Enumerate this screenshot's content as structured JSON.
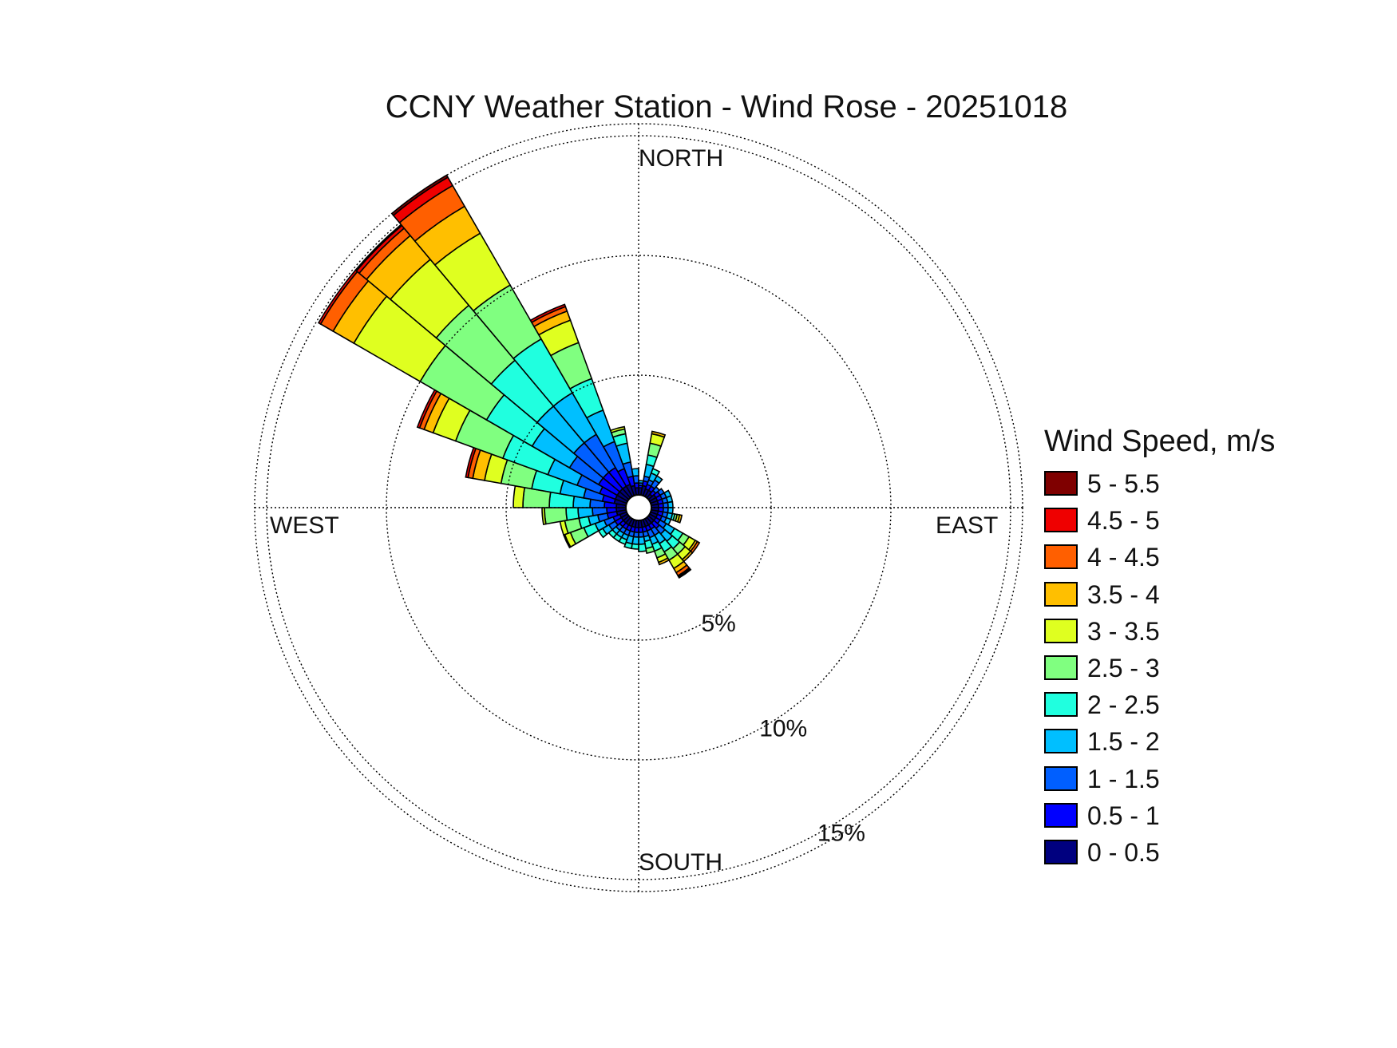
{
  "title": "CCNY Weather Station - Wind Rose - 20251018",
  "directions": {
    "north": "NORTH",
    "south": "SOUTH",
    "east": "EAST",
    "west": "WEST"
  },
  "chart_data": {
    "type": "windrose",
    "title": "CCNY Weather Station - Wind Rose - 20251018",
    "legend_title": "Wind Speed, m/s",
    "legend_placement": "right",
    "rings": [
      {
        "value": 5,
        "label": "5%"
      },
      {
        "value": 10,
        "label": "10%"
      },
      {
        "value": 15,
        "label": "15%"
      }
    ],
    "ring_max": 15.5,
    "bins": [
      {
        "label": "0 - 0.5",
        "color": "#00007f"
      },
      {
        "label": "0.5 - 1",
        "color": "#0000ff"
      },
      {
        "label": "1 - 1.5",
        "color": "#005fff"
      },
      {
        "label": "1.5 - 2",
        "color": "#00bfff"
      },
      {
        "label": "2 - 2.5",
        "color": "#20ffdf"
      },
      {
        "label": "2.5 - 3",
        "color": "#80ff80"
      },
      {
        "label": "3 - 3.5",
        "color": "#dfff20"
      },
      {
        "label": "3.5 - 4",
        "color": "#ffbf00"
      },
      {
        "label": "4 - 4.5",
        "color": "#ff5f00"
      },
      {
        "label": "4.5 - 5",
        "color": "#ef0000"
      },
      {
        "label": "5 - 5.5",
        "color": "#7f0000"
      }
    ],
    "sector_width_deg": 10,
    "sectors": [
      {
        "direction": 5,
        "cumulative": [
          0.3,
          0.4,
          0.5,
          0.6
        ]
      },
      {
        "direction": 15,
        "cumulative": [
          0.4,
          0.6,
          0.8,
          1.3,
          1.7,
          2.2,
          2.6,
          2.7
        ]
      },
      {
        "direction": 25,
        "cumulative": [
          0.3,
          0.5,
          0.7,
          1.0,
          1.2
        ]
      },
      {
        "direction": 35,
        "cumulative": [
          0.3,
          0.5,
          0.8,
          1.0
        ]
      },
      {
        "direction": 45,
        "cumulative": [
          0.2,
          0.4,
          0.6
        ]
      },
      {
        "direction": 55,
        "cumulative": [
          0.3,
          0.5,
          0.7
        ]
      },
      {
        "direction": 65,
        "cumulative": [
          0.3,
          0.5,
          0.7,
          0.9
        ]
      },
      {
        "direction": 75,
        "cumulative": [
          0.3,
          0.5,
          0.7,
          0.9
        ]
      },
      {
        "direction": 85,
        "cumulative": [
          0.3,
          0.5,
          0.7,
          0.9
        ]
      },
      {
        "direction": 95,
        "cumulative": [
          0.3,
          0.5,
          0.7,
          0.9
        ]
      },
      {
        "direction": 105,
        "cumulative": [
          0.3,
          0.5,
          0.7,
          0.9,
          1.0,
          1.1,
          1.2,
          1.3
        ]
      },
      {
        "direction": 115,
        "cumulative": [
          0.3,
          0.5,
          0.7,
          0.9
        ]
      },
      {
        "direction": 125,
        "cumulative": [
          0.3,
          0.5,
          0.8,
          1.2,
          1.6,
          1.9,
          2.2,
          2.3,
          2.4
        ]
      },
      {
        "direction": 135,
        "cumulative": [
          0.3,
          0.6,
          0.9,
          1.3,
          1.7,
          2.0,
          2.3,
          2.4
        ]
      },
      {
        "direction": 145,
        "cumulative": [
          0.3,
          0.5,
          0.8,
          1.2,
          1.6,
          2.0,
          2.4,
          2.6,
          2.75,
          2.8,
          2.85
        ]
      },
      {
        "direction": 155,
        "cumulative": [
          0.3,
          0.5,
          0.8,
          1.1,
          1.4,
          1.7,
          1.9,
          2.0
        ]
      },
      {
        "direction": 165,
        "cumulative": [
          0.3,
          0.5,
          0.7,
          0.9,
          1.2,
          1.4
        ]
      },
      {
        "direction": 175,
        "cumulative": [
          0.3,
          0.5,
          0.7,
          1.0,
          1.3
        ]
      },
      {
        "direction": 185,
        "cumulative": [
          0.3,
          0.5,
          0.7,
          1.0,
          1.2
        ]
      },
      {
        "direction": 195,
        "cumulative": [
          0.3,
          0.5,
          0.7,
          1.0,
          1.2
        ]
      },
      {
        "direction": 205,
        "cumulative": [
          0.3,
          0.5,
          0.7,
          0.9,
          1.1
        ]
      },
      {
        "direction": 215,
        "cumulative": [
          0.3,
          0.5,
          0.7,
          0.9,
          1.1
        ]
      },
      {
        "direction": 225,
        "cumulative": [
          0.3,
          0.5,
          0.7,
          0.9,
          1.1
        ]
      },
      {
        "direction": 235,
        "cumulative": [
          0.3,
          0.6,
          0.9,
          1.2,
          1.4
        ]
      },
      {
        "direction": 245,
        "cumulative": [
          0.3,
          0.6,
          1.0,
          1.4,
          1.9,
          2.5,
          2.75,
          2.8
        ]
      },
      {
        "direction": 255,
        "cumulative": [
          0.4,
          0.8,
          1.2,
          1.6,
          2.0,
          2.6,
          2.8
        ]
      },
      {
        "direction": 265,
        "cumulative": [
          0.4,
          0.8,
          1.4,
          2.0,
          2.5,
          3.4,
          3.5
        ]
      },
      {
        "direction": 275,
        "cumulative": [
          0.4,
          0.9,
          1.5,
          2.2,
          3.2,
          4.3,
          4.7
        ]
      },
      {
        "direction": 285,
        "cumulative": [
          0.5,
          1.0,
          1.8,
          2.8,
          4.0,
          5.3,
          6.0,
          6.5,
          6.7,
          6.8
        ]
      },
      {
        "direction": 295,
        "cumulative": [
          0.5,
          1.2,
          2.2,
          3.5,
          5.5,
          7.6,
          8.6,
          9.0,
          9.2,
          9.3
        ]
      },
      {
        "direction": 305,
        "cumulative": [
          0.5,
          1.4,
          2.8,
          4.6,
          6.8,
          10.0,
          13.2,
          14.2,
          14.8,
          14.9
        ]
      },
      {
        "direction": 315,
        "cumulative": [
          0.5,
          1.4,
          3.0,
          5.0,
          7.5,
          10.5,
          13.0,
          14.3,
          14.7,
          14.85,
          14.9
        ]
      },
      {
        "direction": 325,
        "cumulative": [
          0.5,
          1.4,
          3.0,
          5.0,
          7.6,
          10.2,
          12.7,
          14.0,
          15.0,
          15.4,
          15.5
        ]
      },
      {
        "direction": 335,
        "cumulative": [
          0.5,
          1.2,
          2.4,
          3.8,
          5.2,
          6.8,
          7.8,
          8.2,
          8.4,
          8.5
        ]
      },
      {
        "direction": 345,
        "cumulative": [
          0.4,
          0.8,
          1.4,
          2.2,
          2.6,
          2.8,
          2.9
        ]
      },
      {
        "direction": 355,
        "cumulative": [
          0.3,
          0.5,
          0.8,
          1.1
        ]
      }
    ]
  }
}
